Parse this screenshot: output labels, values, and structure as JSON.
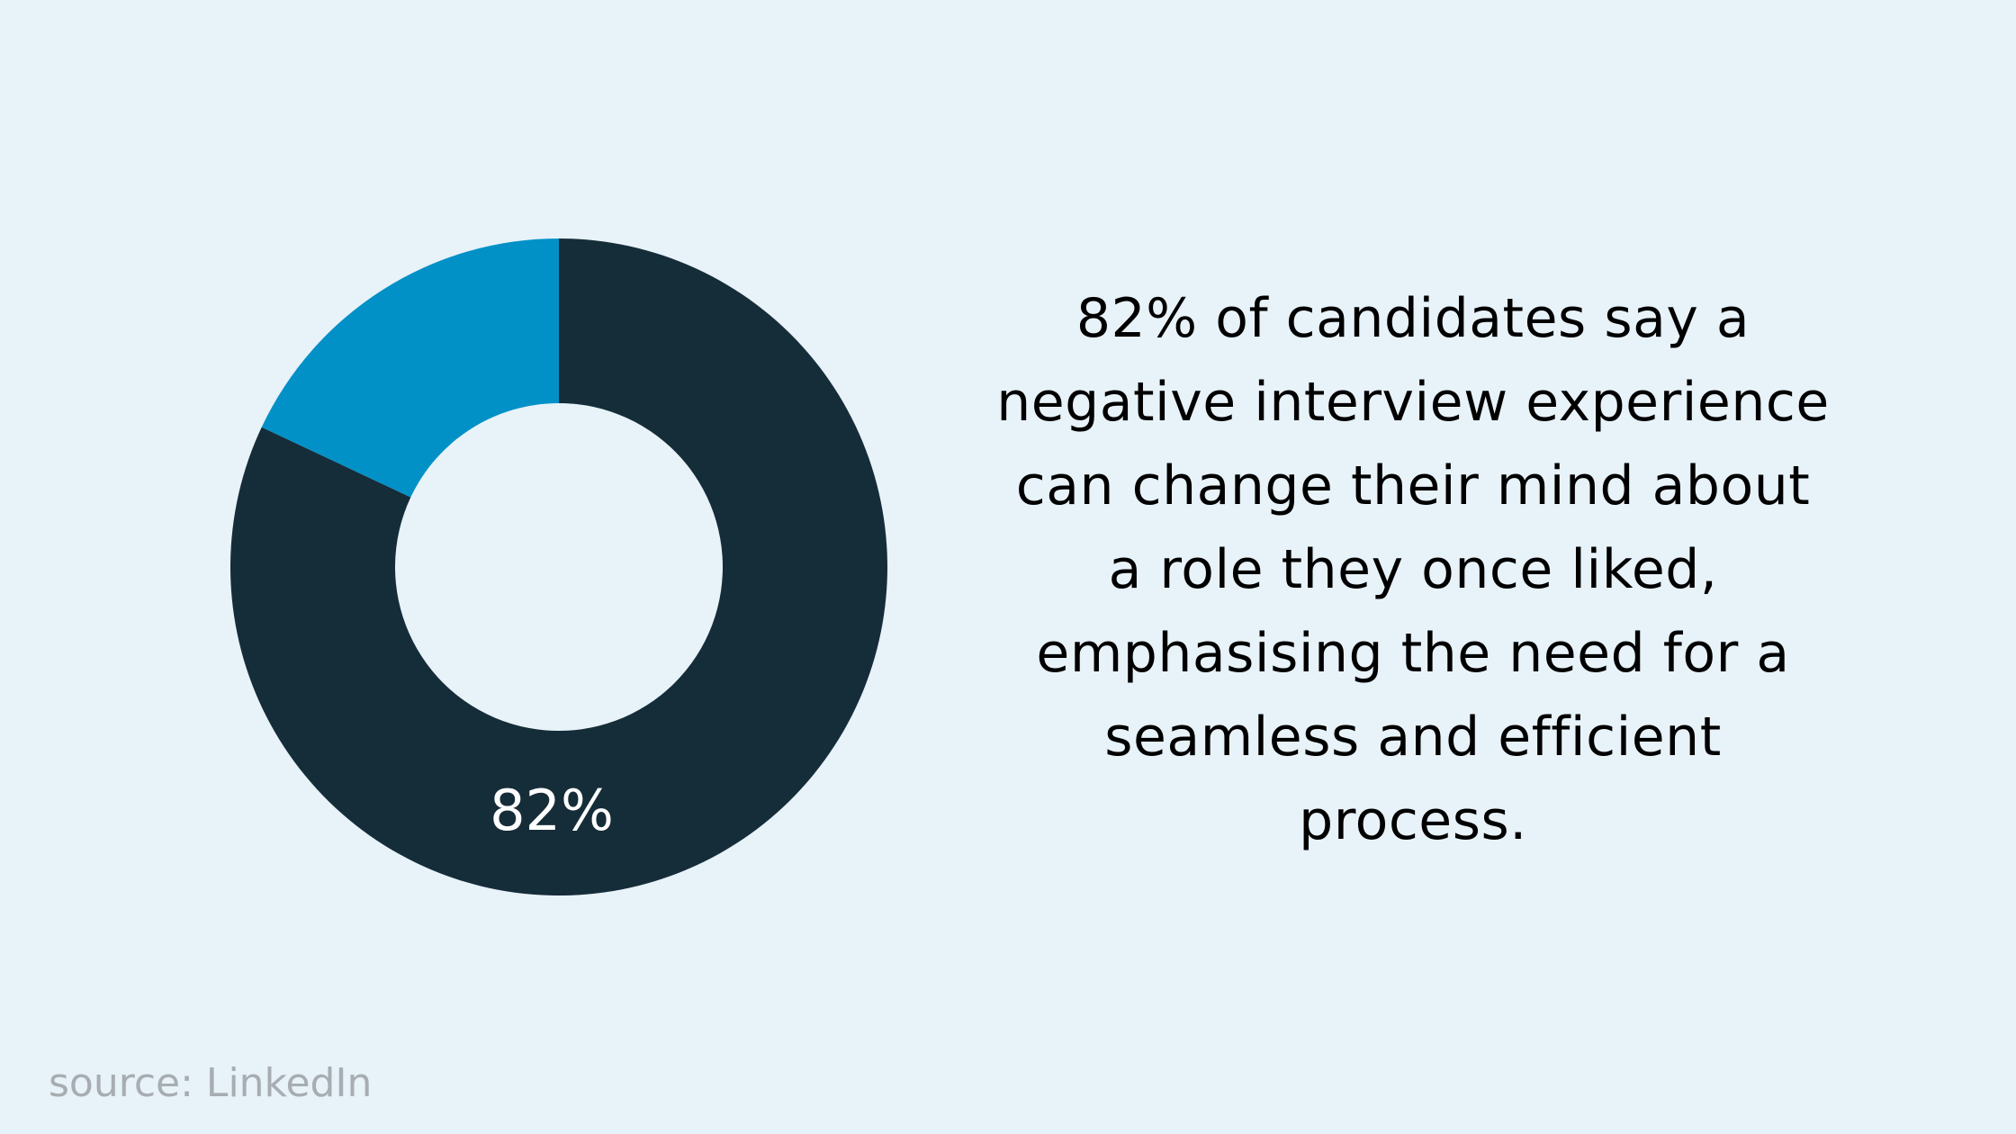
{
  "chart_data": {
    "type": "pie",
    "donut": true,
    "slices": [
      {
        "value": 82,
        "label": "82%",
        "color": "#152d39"
      },
      {
        "value": 18,
        "label": "",
        "color": "#0291c7"
      }
    ]
  },
  "statement": {
    "lines": [
      "82% of candidates say a",
      "negative interview experience",
      "can change their mind about",
      "a role they once liked,",
      "emphasising the need for a",
      "seamless and efficient",
      "process."
    ]
  },
  "source": "source: LinkedIn",
  "colors": {
    "background": "#e8f2f9",
    "source_text": "#a7adb1"
  }
}
